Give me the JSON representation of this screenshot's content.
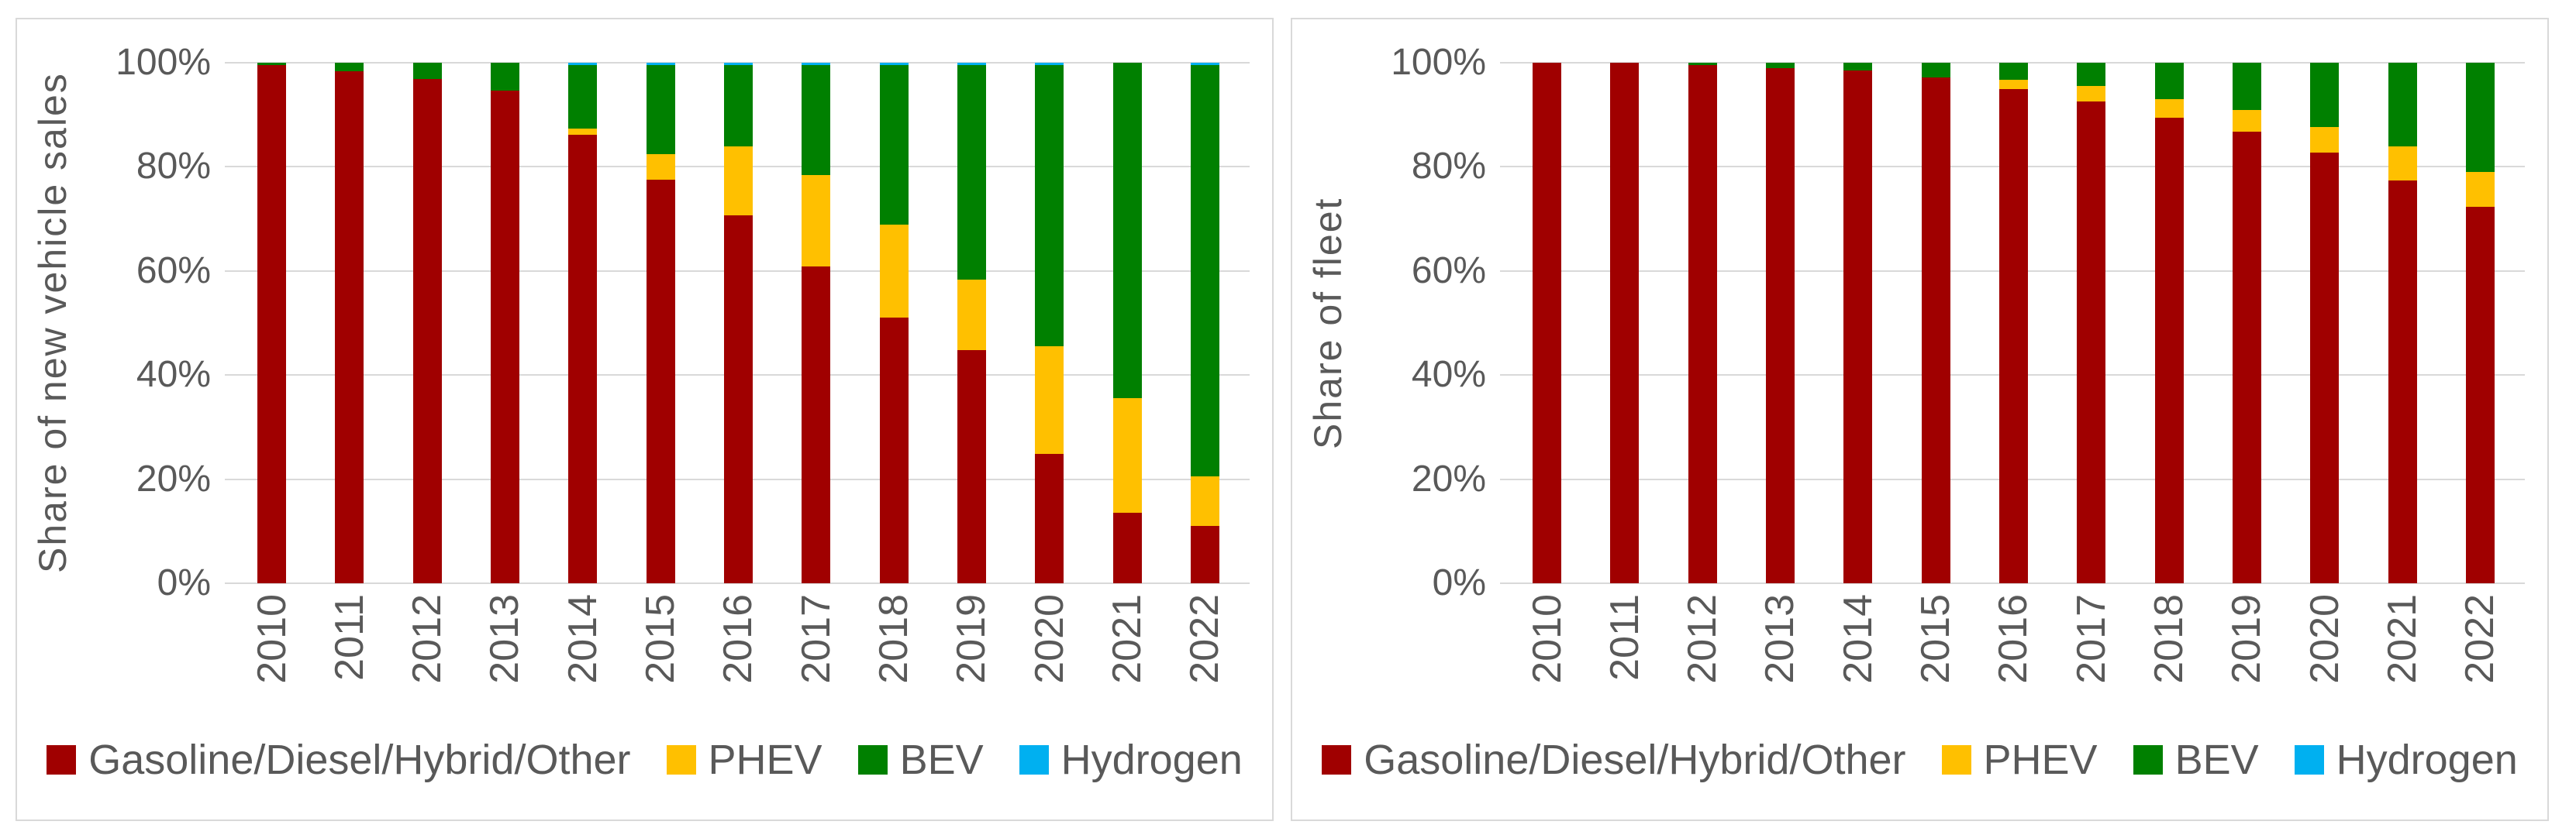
{
  "figure": {
    "background": "#FFFFFF",
    "panel_border_color": "#D9D9D9",
    "gridline_color": "#D9D9D9",
    "text_color": "#595959"
  },
  "chart_data": [
    {
      "type": "bar",
      "stacked": true,
      "orientation": "vertical",
      "title": "",
      "xlabel": "",
      "ylabel": "Share of new vehicle sales",
      "ylim": [
        0,
        100
      ],
      "ytick_labels": [
        "0%",
        "20%",
        "40%",
        "60%",
        "80%",
        "100%"
      ],
      "grid": true,
      "legend_position": "bottom",
      "categories": [
        "2010",
        "2011",
        "2012",
        "2013",
        "2014",
        "2015",
        "2016",
        "2017",
        "2018",
        "2019",
        "2020",
        "2021",
        "2022"
      ],
      "series": [
        {
          "name": "Gasoline/Diesel/Hybrid/Other",
          "color": "#A00000",
          "values": [
            99.6,
            98.3,
            96.9,
            94.7,
            86.1,
            77.5,
            70.7,
            60.9,
            51.1,
            44.8,
            24.8,
            13.5,
            11.0
          ]
        },
        {
          "name": "PHEV",
          "color": "#FFC000",
          "values": [
            0,
            0,
            0,
            0,
            1.2,
            5.0,
            13.3,
            17.5,
            17.8,
            13.6,
            20.7,
            22.0,
            9.6
          ]
        },
        {
          "name": "BEV",
          "color": "#008000",
          "values": [
            0.4,
            1.7,
            3.1,
            5.3,
            12.3,
            17.1,
            15.6,
            21.2,
            30.7,
            41.2,
            54.1,
            64.5,
            79.0
          ]
        },
        {
          "name": "Hydrogen",
          "color": "#00B0F0",
          "values": [
            0,
            0,
            0,
            0,
            0.4,
            0.4,
            0.4,
            0.4,
            0.4,
            0.4,
            0.4,
            0,
            0.4
          ]
        }
      ]
    },
    {
      "type": "bar",
      "stacked": true,
      "orientation": "vertical",
      "title": "",
      "xlabel": "",
      "ylabel": "Share of fleet",
      "ylim": [
        0,
        100
      ],
      "ytick_labels": [
        "0%",
        "20%",
        "40%",
        "60%",
        "80%",
        "100%"
      ],
      "grid": true,
      "legend_position": "bottom",
      "categories": [
        "2010",
        "2011",
        "2012",
        "2013",
        "2014",
        "2015",
        "2016",
        "2017",
        "2018",
        "2019",
        "2020",
        "2021",
        "2022"
      ],
      "series": [
        {
          "name": "Gasoline/Diesel/Hybrid/Other",
          "color": "#A00000",
          "values": [
            100,
            100,
            99.5,
            99.0,
            98.5,
            97.2,
            95.0,
            92.6,
            89.5,
            86.8,
            82.8,
            77.4,
            72.3
          ]
        },
        {
          "name": "PHEV",
          "color": "#FFC000",
          "values": [
            0,
            0,
            0,
            0,
            0,
            0,
            1.8,
            2.9,
            3.5,
            4.2,
            4.8,
            6.6,
            6.7
          ]
        },
        {
          "name": "BEV",
          "color": "#008000",
          "values": [
            0,
            0,
            0.5,
            1.0,
            1.5,
            2.8,
            3.2,
            4.5,
            7.0,
            9.0,
            12.4,
            16.0,
            21.0
          ]
        },
        {
          "name": "Hydrogen",
          "color": "#00B0F0",
          "values": [
            0,
            0,
            0,
            0,
            0,
            0,
            0,
            0,
            0,
            0,
            0,
            0,
            0
          ]
        }
      ]
    }
  ]
}
